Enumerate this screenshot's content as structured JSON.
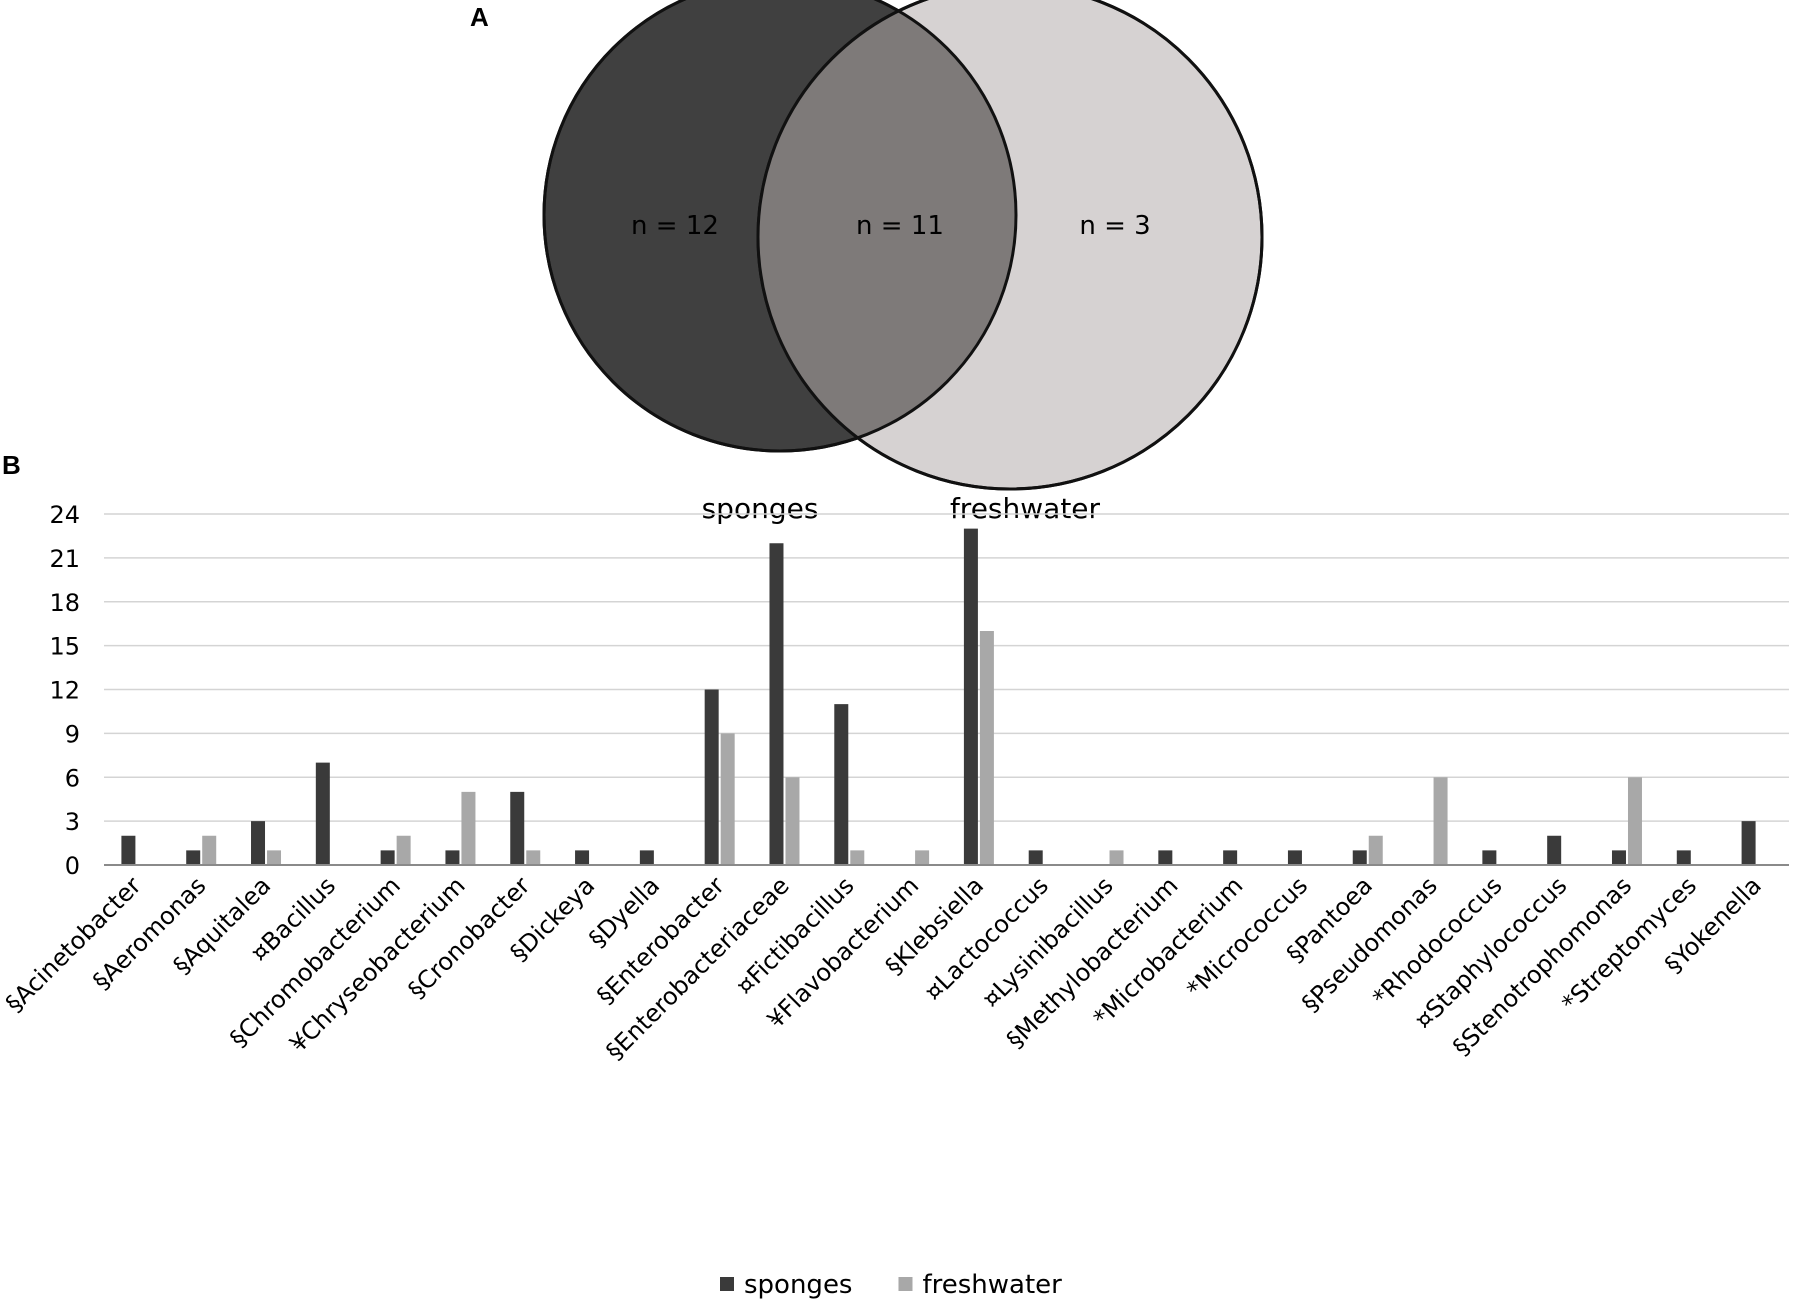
{
  "panel_a": {
    "label": "A",
    "venn": {
      "left_set": "sponges",
      "right_set": "freshwater",
      "left_only": "n = 12",
      "intersection": "n = 11",
      "right_only": "n = 3",
      "colors": {
        "left": "#404040",
        "right": "#d6d2d2",
        "overlap": "#7e7a79",
        "outline": "#111111"
      }
    }
  },
  "panel_b": {
    "label": "B"
  },
  "chart_data": {
    "type": "bar",
    "title": "",
    "xlabel": "",
    "ylabel": "",
    "ylim": [
      0,
      24
    ],
    "yticks": [
      "0",
      "3",
      "6",
      "9",
      "12",
      "15",
      "18",
      "21",
      "24"
    ],
    "grid": true,
    "legend_position": "bottom-center",
    "categories": [
      "§Acinetobacter",
      "§Aeromonas",
      "§Aquitalea",
      "¤Bacillus",
      "§Chromobacterium",
      "¥Chryseobacterium",
      "§Cronobacter",
      "§Dickeya",
      "§Dyella",
      "§Enterobacter",
      "§Enterobacteriaceae",
      "¤Fictibacillus",
      "¥Flavobacterium",
      "§Klebsiella",
      "¤Lactococcus",
      "¤Lysinibacillus",
      "§Methylobacterium",
      "*Microbacterium",
      "*Micrococcus",
      "§Pantoea",
      "§Pseudomonas",
      "*Rhodococcus",
      "¤Staphylococcus",
      "§Stenotrophomonas",
      "*Streptomyces",
      "§Yokenella"
    ],
    "series": [
      {
        "name": "sponges",
        "color": "#3a3a3a",
        "values": [
          2,
          1,
          3,
          7,
          1,
          1,
          5,
          1,
          1,
          12,
          22,
          11,
          0,
          23,
          1,
          0,
          1,
          1,
          1,
          1,
          0,
          1,
          2,
          1,
          1,
          3
        ]
      },
      {
        "name": "freshwater",
        "color": "#a8a8a8",
        "values": [
          0,
          2,
          1,
          0,
          2,
          5,
          1,
          0,
          0,
          9,
          6,
          1,
          1,
          16,
          0,
          1,
          0,
          0,
          0,
          2,
          6,
          0,
          0,
          6,
          0,
          0
        ]
      }
    ]
  }
}
